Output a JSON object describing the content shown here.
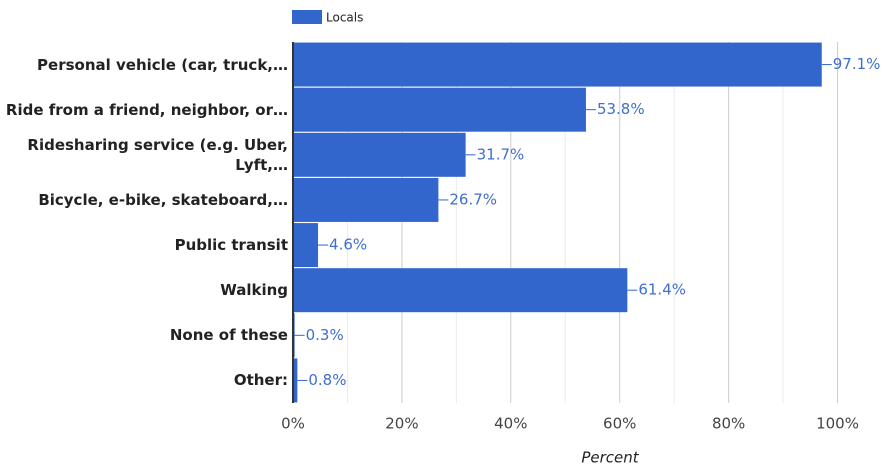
{
  "chart_data": {
    "type": "bar",
    "orientation": "horizontal",
    "categories": [
      "Personal vehicle (car, truck,…",
      "Ride from a friend, neighbor, or…",
      "Ridesharing service (e.g. Uber, Lyft,…",
      "Bicycle, e-bike, skateboard,…",
      "Public transit",
      "Walking",
      "None of these",
      "Other:"
    ],
    "series": [
      {
        "name": "Locals",
        "color": "#3366cc",
        "values": [
          97.1,
          53.8,
          31.7,
          26.7,
          4.6,
          61.4,
          0.3,
          0.8
        ],
        "value_labels": [
          "97.1%",
          "53.8%",
          "31.7%",
          "26.7%",
          "4.6%",
          "61.4%",
          "0.3%",
          "0.8%"
        ]
      }
    ],
    "xlabel": "Percent",
    "xlim": [
      0,
      110
    ],
    "xticks": [
      {
        "value": 0,
        "label": "0%"
      },
      {
        "value": 20,
        "label": "20%"
      },
      {
        "value": 40,
        "label": "40%"
      },
      {
        "value": 60,
        "label": "60%"
      },
      {
        "value": 80,
        "label": "80%"
      },
      {
        "value": 100,
        "label": "100%"
      }
    ],
    "xticks_minor": [
      10,
      30,
      50,
      70,
      90
    ],
    "grid": true,
    "legend": "top"
  }
}
